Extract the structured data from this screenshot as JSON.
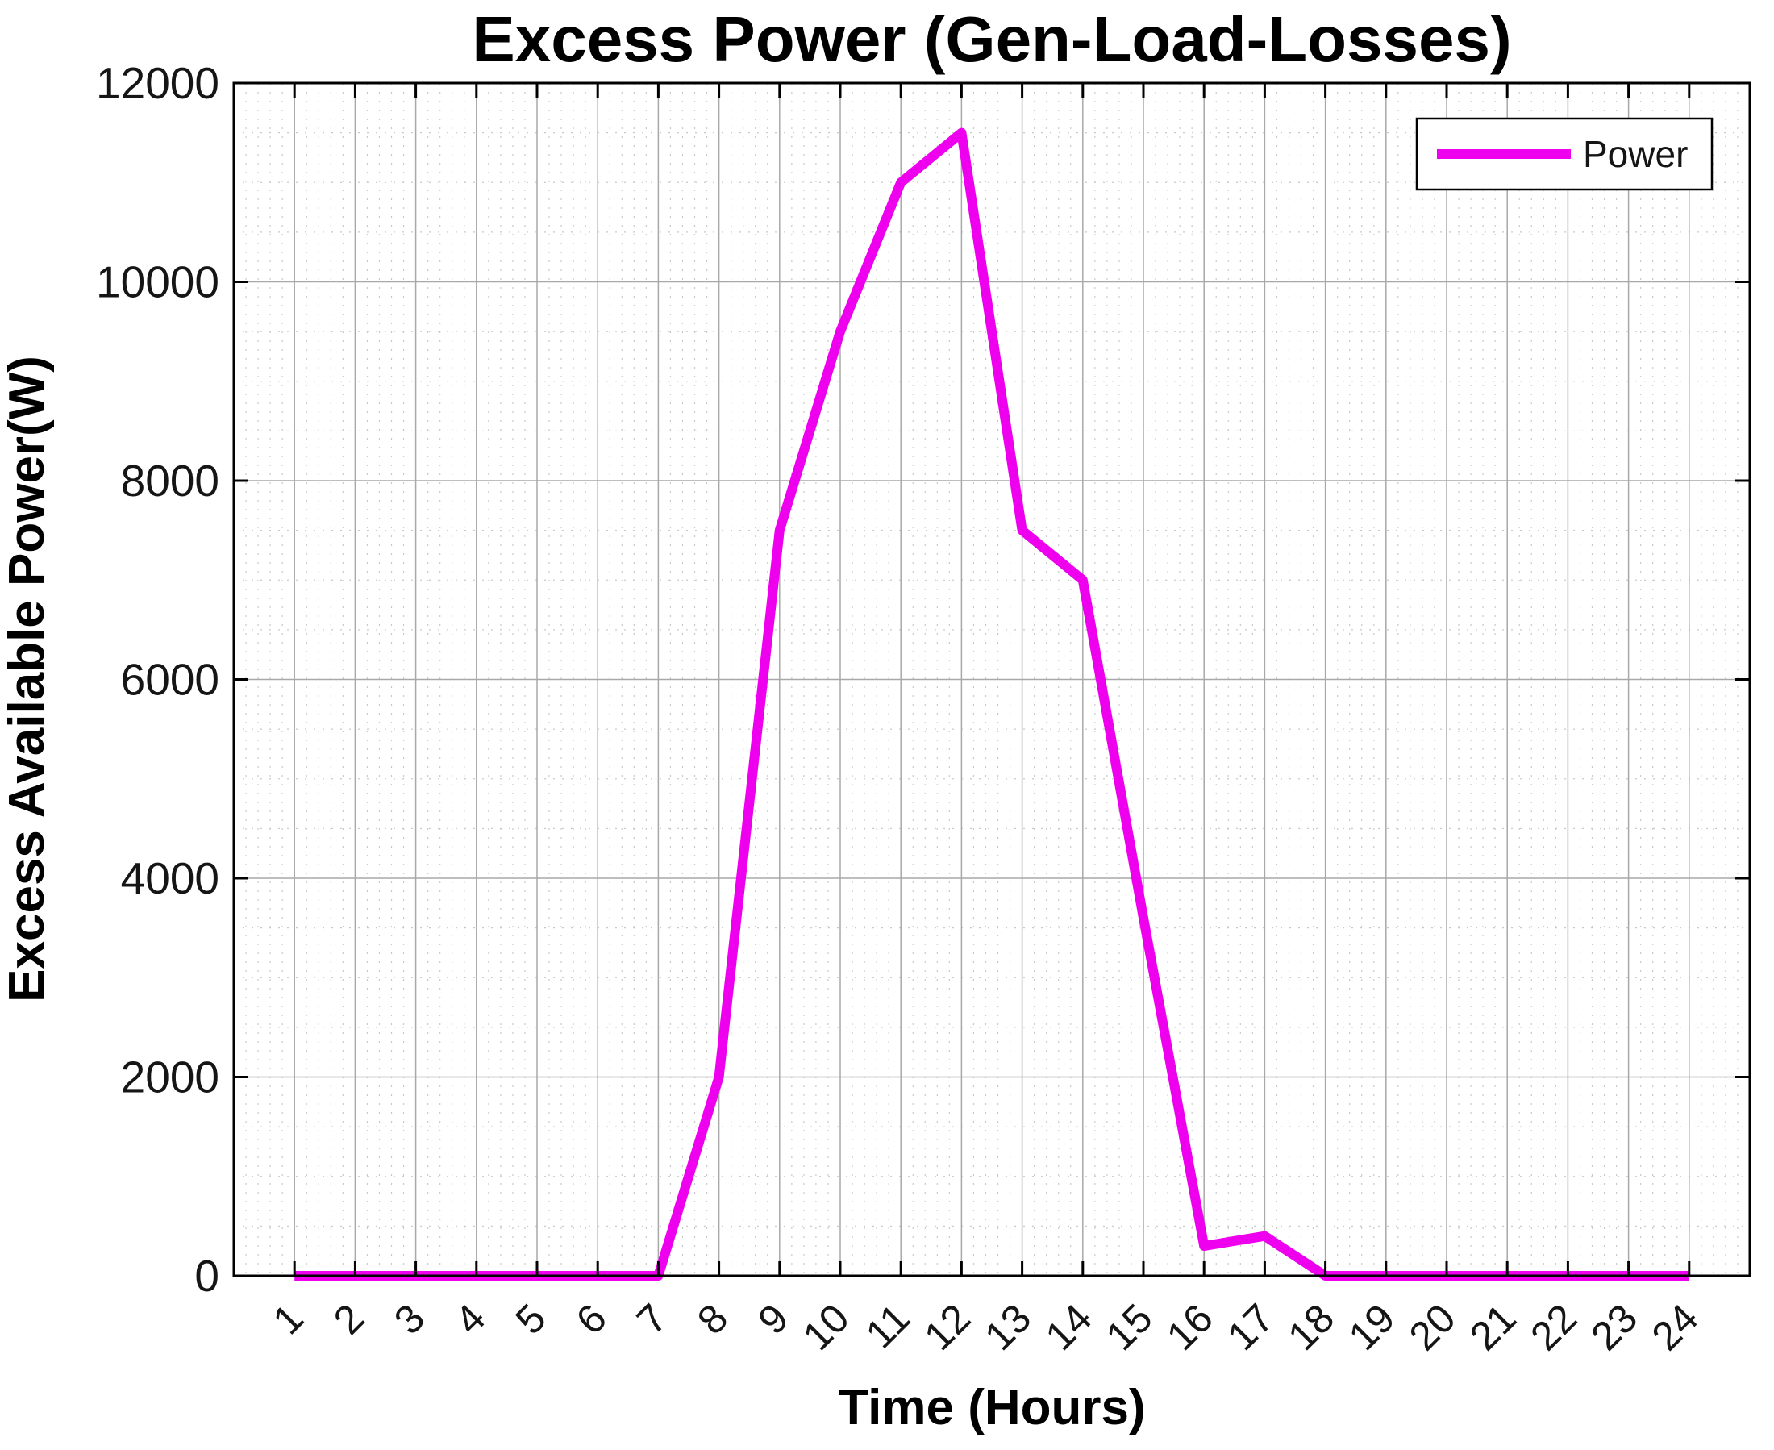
{
  "figure": {
    "background": "#ffffff",
    "accent_line_color": "#ee00ee",
    "axis_color": "#000000",
    "major_grid_color": "#a8a8a8",
    "minor_grid_color": "#c9c9c9"
  },
  "chart_data": {
    "type": "line",
    "title": "Excess Power (Gen-Load-Losses)",
    "xlabel": "Time (Hours)",
    "ylabel": "Excess Available Power(W)",
    "x": [
      1,
      2,
      3,
      4,
      5,
      6,
      7,
      8,
      9,
      10,
      11,
      12,
      13,
      14,
      15,
      16,
      17,
      18,
      19,
      20,
      21,
      22,
      23,
      24
    ],
    "x_tick_labels": [
      "1",
      "2",
      "3",
      "4",
      "5",
      "6",
      "7",
      "8",
      "9",
      "10",
      "11",
      "12",
      "13",
      "14",
      "15",
      "16",
      "17",
      "18",
      "19",
      "20",
      "21",
      "22",
      "23",
      "24"
    ],
    "y_ticks": [
      0,
      2000,
      4000,
      6000,
      8000,
      10000,
      12000
    ],
    "y_tick_labels": [
      "0",
      "2000",
      "4000",
      "6000",
      "8000",
      "10000",
      "12000"
    ],
    "xlim": [
      0,
      25
    ],
    "ylim": [
      0,
      12000
    ],
    "grid": "major solid gray + dotted minor grid (x minor step 0.2 h, y minor step 500 W)",
    "legend_position": "top-right",
    "series": [
      {
        "name": "Power",
        "color": "#ee00ee",
        "values": [
          0,
          0,
          0,
          0,
          0,
          0,
          0,
          2000,
          7500,
          9500,
          11000,
          11500,
          7500,
          7000,
          3600,
          300,
          400,
          0,
          0,
          0,
          0,
          0,
          0,
          0
        ]
      }
    ]
  }
}
